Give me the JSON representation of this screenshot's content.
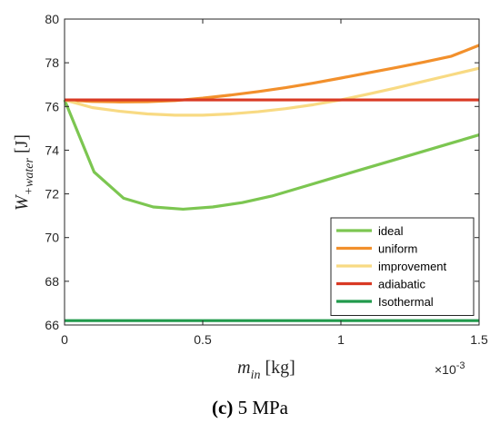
{
  "chart_data": {
    "type": "line",
    "xlim": [
      0,
      1.5
    ],
    "ylim": [
      66,
      80
    ],
    "x_ticks": [
      0,
      0.5,
      1,
      1.5
    ],
    "x_tick_labels": [
      "0",
      "0.5",
      "1",
      "1.5"
    ],
    "y_ticks": [
      66,
      68,
      70,
      72,
      74,
      76,
      78,
      80
    ],
    "y_tick_labels": [
      "66",
      "68",
      "70",
      "72",
      "74",
      "76",
      "78",
      "80"
    ],
    "x_exponent": "×10",
    "x_exponent_power": "-3",
    "xlabel": {
      "main": "m",
      "sub": "in",
      "unit": " [kg]"
    },
    "ylabel": {
      "main": "W",
      "sub": "+water",
      "unit": " [J]"
    },
    "grid": false,
    "legend_position": "bottom-right",
    "series": [
      {
        "name": "ideal",
        "color": "#7CC651",
        "x": [
          0,
          0.107,
          0.214,
          0.321,
          0.429,
          0.536,
          0.643,
          0.75,
          0.857,
          0.964,
          1.071,
          1.179,
          1.286,
          1.393,
          1.5
        ],
        "y": [
          76.3,
          73.0,
          71.8,
          71.4,
          71.3,
          71.4,
          71.6,
          71.9,
          72.3,
          72.7,
          73.1,
          73.5,
          73.9,
          74.3,
          74.7
        ]
      },
      {
        "name": "uniform",
        "color": "#F2902C",
        "x": [
          0,
          0.1,
          0.2,
          0.3,
          0.4,
          0.5,
          0.6,
          0.7,
          0.8,
          0.9,
          1.0,
          1.1,
          1.2,
          1.3,
          1.4,
          1.5
        ],
        "y": [
          76.3,
          76.23,
          76.21,
          76.22,
          76.27,
          76.38,
          76.52,
          76.68,
          76.86,
          77.07,
          77.3,
          77.54,
          77.78,
          78.03,
          78.3,
          78.8
        ]
      },
      {
        "name": "improvement",
        "color": "#F8DA83",
        "x": [
          0,
          0.1,
          0.2,
          0.3,
          0.4,
          0.5,
          0.6,
          0.7,
          0.8,
          0.9,
          1.0,
          1.1,
          1.2,
          1.3,
          1.4,
          1.5
        ],
        "y": [
          76.3,
          75.95,
          75.78,
          75.66,
          75.6,
          75.6,
          75.66,
          75.76,
          75.9,
          76.08,
          76.3,
          76.57,
          76.85,
          77.15,
          77.45,
          77.75
        ]
      },
      {
        "name": "adiabatic",
        "color": "#D93A24",
        "x": [
          0,
          1.5
        ],
        "y": [
          76.3,
          76.3
        ]
      },
      {
        "name": "Isothermal",
        "color": "#219A4C",
        "x": [
          0,
          1.5
        ],
        "y": [
          66.2,
          66.2
        ]
      }
    ]
  },
  "caption": {
    "panel": "(c)",
    "text": " 5 MPa"
  }
}
